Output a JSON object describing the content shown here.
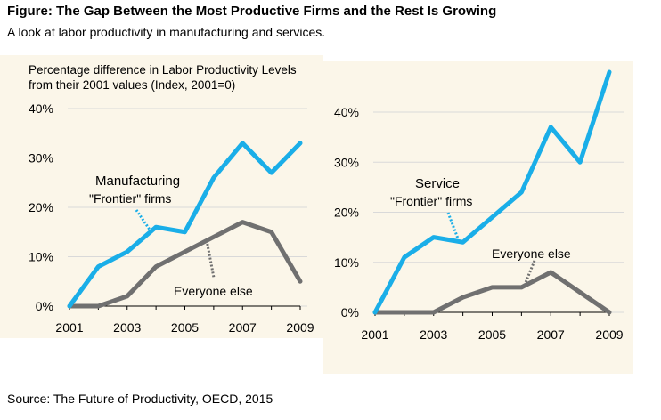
{
  "title": "Figure: The Gap Between the Most Productive Firms and the Rest Is Growing",
  "subtitle": "A look at labor productivity in manufacturing and services.",
  "source": "Source:  The Future of Productivity, OECD, 2015",
  "colors": {
    "frontier": "#1aaee8",
    "everyone_else": "#707070",
    "panel_bg": "#fbf6e9",
    "grid": "#d9d9d9"
  },
  "chart_data": [
    {
      "type": "line",
      "ylabel_line1": "Percentage difference in Labor Productivity Levels",
      "ylabel_line2": "from their 2001 values (Index, 2001=0)",
      "x": [
        2001,
        2002,
        2003,
        2004,
        2005,
        2006,
        2007,
        2008,
        2009
      ],
      "xticks": [
        "2001",
        "2003",
        "2005",
        "2007",
        "2009"
      ],
      "yticks": [
        "0%",
        "10%",
        "20%",
        "30%",
        "40%"
      ],
      "ylim": [
        0,
        40
      ],
      "grid": true,
      "panel_label": "Manufacturing",
      "series": [
        {
          "name": "\"Frontier\" firms",
          "values": [
            0,
            8,
            11,
            16,
            15,
            26,
            33,
            27,
            33
          ]
        },
        {
          "name": "Everyone else",
          "values": [
            0,
            0,
            2,
            8,
            11,
            14,
            17,
            15,
            5
          ]
        }
      ]
    },
    {
      "type": "line",
      "x": [
        2001,
        2002,
        2003,
        2004,
        2005,
        2006,
        2007,
        2008,
        2009
      ],
      "xticks": [
        "2001",
        "2003",
        "2005",
        "2007",
        "2009"
      ],
      "yticks": [
        "0%",
        "10%",
        "20%",
        "30%",
        "40%"
      ],
      "ylim": [
        0,
        40
      ],
      "grid": true,
      "panel_label": "Service",
      "series": [
        {
          "name": "\"Frontier\" firms",
          "values": [
            0,
            11,
            15,
            14,
            19,
            24,
            37,
            30,
            48
          ]
        },
        {
          "name": "Everyone else",
          "values": [
            0,
            0,
            0,
            3,
            5,
            5,
            8,
            4,
            0
          ]
        }
      ]
    }
  ]
}
